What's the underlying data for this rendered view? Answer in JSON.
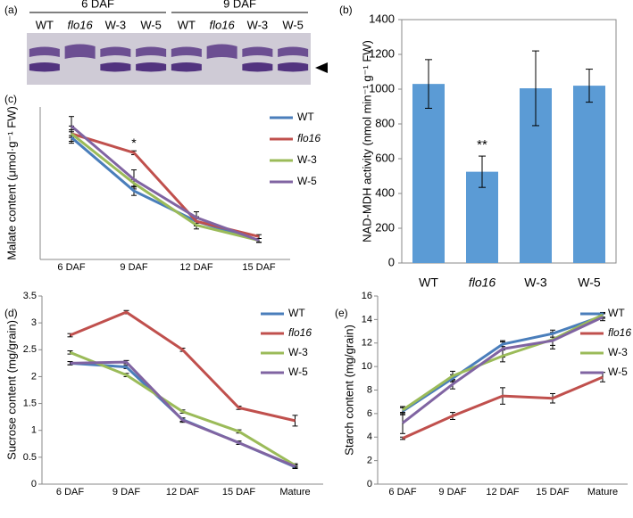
{
  "chart_data": [
    {
      "panel": "(a)",
      "type": "gel",
      "groups": [
        "6 DAF",
        "9 DAF"
      ],
      "lanes": [
        "WT",
        "flo16",
        "W-3",
        "W-5",
        "WT",
        "flo16",
        "W-3",
        "W-5"
      ]
    },
    {
      "panel": "(b)",
      "type": "bar",
      "y_label": "NAD-MDH activity (nmol min⁻¹ g⁻¹ FW)",
      "categories": [
        "WT",
        "flo16",
        "W-3",
        "W-5"
      ],
      "values": [
        1030,
        525,
        1005,
        1020
      ],
      "errors": [
        140,
        90,
        215,
        95
      ],
      "color": "#5b9bd5",
      "ylim": [
        0,
        1400
      ],
      "yticks": [
        0,
        200,
        400,
        600,
        800,
        1000,
        1200,
        1400
      ],
      "annotation": "**"
    },
    {
      "panel": "(c)",
      "type": "line",
      "y_label": "Malate content (μmol·g⁻¹ FW)",
      "categories": [
        "6 DAF",
        "9 DAF",
        "12 DAF",
        "15 DAF"
      ],
      "ylim": [
        0,
        40
      ],
      "annotation": "*",
      "series": [
        {
          "name": "WT",
          "color": "#4a7ebb",
          "values": [
            32,
            18,
            10,
            5
          ],
          "errors": [
            1.5,
            1.2,
            1.2,
            0.5
          ]
        },
        {
          "name": "flo16",
          "color": "#c0504d",
          "values": [
            33,
            28,
            10,
            6
          ],
          "errors": [
            1,
            0.5,
            1,
            0.5
          ]
        },
        {
          "name": "W-3",
          "color": "#9bbb59",
          "values": [
            33,
            20,
            9,
            5
          ],
          "errors": [
            2,
            1,
            1,
            0.5
          ]
        },
        {
          "name": "W-5",
          "color": "#8064a2",
          "values": [
            35,
            21,
            11,
            5
          ],
          "errors": [
            2.5,
            2.5,
            1.5,
            0.5
          ]
        }
      ]
    },
    {
      "panel": "(d)",
      "type": "line",
      "y_label": "Sucrose content (mg/grain)",
      "categories": [
        "6 DAF",
        "9 DAF",
        "12 DAF",
        "15 DAF",
        "Mature"
      ],
      "ylim": [
        0,
        3.5
      ],
      "yticks": [
        0,
        0.5,
        1,
        1.5,
        2,
        2.5,
        3,
        3.5
      ],
      "series": [
        {
          "name": "WT",
          "color": "#4a7ebb",
          "values": [
            2.25,
            2.18,
            1.2,
            0.77,
            0.32
          ],
          "errors": [
            0.03,
            0.03,
            0.03,
            0.03,
            0.03
          ]
        },
        {
          "name": "flo16",
          "color": "#c0504d",
          "values": [
            2.77,
            3.2,
            2.5,
            1.42,
            1.18
          ],
          "errors": [
            0.03,
            0.03,
            0.03,
            0.03,
            0.1
          ]
        },
        {
          "name": "W-3",
          "color": "#9bbb59",
          "values": [
            2.45,
            2.03,
            1.35,
            0.98,
            0.35
          ],
          "errors": [
            0.03,
            0.03,
            0.03,
            0.03,
            0.03
          ]
        },
        {
          "name": "W-5",
          "color": "#8064a2",
          "values": [
            2.25,
            2.27,
            1.19,
            0.77,
            0.33
          ],
          "errors": [
            0.03,
            0.03,
            0.04,
            0.03,
            0.03
          ]
        }
      ]
    },
    {
      "panel": "(e)",
      "type": "line",
      "y_label": "Starch content (mg/grain)",
      "categories": [
        "6 DAF",
        "9 DAF",
        "12 DAF",
        "15 DAF",
        "Mature"
      ],
      "ylim": [
        0,
        16
      ],
      "yticks": [
        0,
        2,
        4,
        6,
        8,
        10,
        12,
        14,
        16
      ],
      "series": [
        {
          "name": "WT",
          "color": "#4a7ebb",
          "values": [
            6.2,
            9,
            11.9,
            12.8,
            14.3
          ],
          "errors": [
            0.3,
            0.3,
            0.2,
            0.3,
            0.2
          ]
        },
        {
          "name": "flo16",
          "color": "#c0504d",
          "values": [
            3.9,
            5.8,
            7.5,
            7.3,
            9.1
          ],
          "errors": [
            0.1,
            0.3,
            0.7,
            0.4,
            0.4
          ]
        },
        {
          "name": "W-3",
          "color": "#9bbb59",
          "values": [
            6.3,
            9.2,
            10.9,
            12.3,
            14.4
          ],
          "errors": [
            0.3,
            0.4,
            0.5,
            0.5,
            0.2
          ]
        },
        {
          "name": "W-5",
          "color": "#8064a2",
          "values": [
            5.2,
            8.5,
            11.5,
            12.2,
            14.2
          ],
          "errors": [
            0.9,
            0.4,
            0.7,
            0.7,
            0.3
          ]
        }
      ]
    }
  ]
}
